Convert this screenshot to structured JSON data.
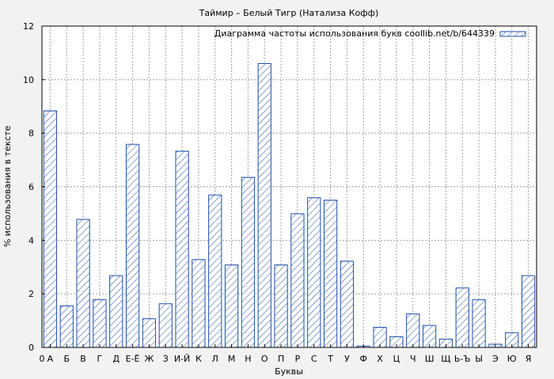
{
  "chart_data": {
    "type": "bar",
    "title": "Таймир – Белый Тигр (Натализа Кофф)",
    "xlabel": "Буквы",
    "ylabel": "% использования в тексте",
    "ylim": [
      0,
      12
    ],
    "yticks": [
      "0",
      "2",
      "4",
      "6",
      "8",
      "10",
      "12"
    ],
    "x_start_label": "0",
    "categories": [
      "А",
      "Б",
      "В",
      "Г",
      "Д",
      "Е-Ё",
      "Ж",
      "З",
      "И-Й",
      "К",
      "Л",
      "М",
      "Н",
      "О",
      "П",
      "Р",
      "С",
      "Т",
      "У",
      "Ф",
      "Х",
      "Ц",
      "Ч",
      "Ш",
      "Щ",
      "Ь-Ъ",
      "Ы",
      "Э",
      "Ю",
      "Я"
    ],
    "values": [
      8.83,
      1.55,
      4.78,
      1.78,
      2.68,
      7.58,
      1.07,
      1.63,
      7.33,
      3.28,
      5.69,
      3.08,
      6.35,
      10.6,
      3.08,
      4.99,
      5.59,
      5.5,
      3.22,
      0.05,
      0.75,
      0.4,
      1.25,
      0.82,
      0.31,
      2.22,
      1.78,
      0.12,
      0.55,
      2.68
    ],
    "legend": {
      "label": "Диаграмма частоты использования букв coollib.net/b/644339",
      "position": "top-right"
    },
    "grid": true,
    "colors": {
      "bar_stroke": "#1f4fa8",
      "hatch": "#1f4fa8",
      "background": "#f2f2f2",
      "plot_bg": "#ffffff",
      "grid": "#a0a0a0"
    }
  }
}
